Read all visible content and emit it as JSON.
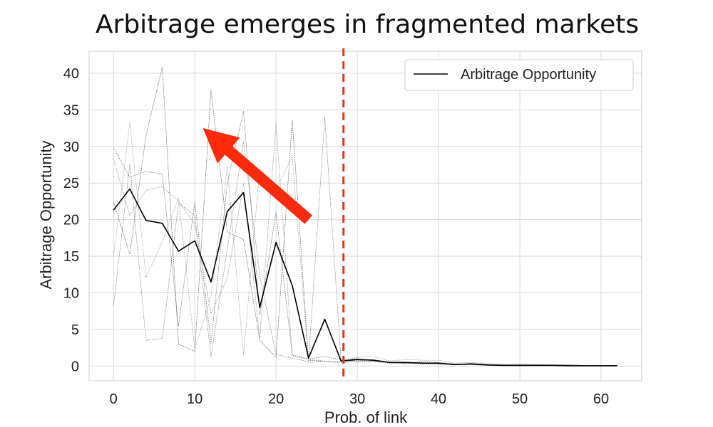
{
  "chart_data": {
    "type": "line",
    "title": "Arbitrage emerges in fragmented markets",
    "xlabel": "Prob. of link",
    "ylabel": "Arbitrage Opportunity",
    "xlim": [
      -3,
      65
    ],
    "ylim": [
      -2,
      43
    ],
    "xticks": [
      0,
      10,
      20,
      30,
      40,
      50,
      60
    ],
    "yticks": [
      0,
      5,
      10,
      15,
      20,
      25,
      30,
      35,
      40
    ],
    "grid": true,
    "legend_position": "top-right",
    "threshold_line": {
      "x": 28.3,
      "color": "#ee3311",
      "style": "dashed"
    },
    "annotation_arrow": {
      "from": [
        24,
        20
      ],
      "to": [
        11,
        32.5
      ],
      "color": "#ff2a0a"
    },
    "x": [
      0,
      2,
      4,
      6,
      8,
      10,
      12,
      14,
      16,
      18,
      20,
      22,
      24,
      26,
      28,
      30,
      32,
      34,
      36,
      38,
      40,
      42,
      44,
      46,
      48,
      50,
      52,
      54,
      56,
      58,
      60,
      62
    ],
    "series": [
      {
        "name": "Arbitrage Opportunity",
        "role": "mean",
        "color": "#000000",
        "values": [
          21.3,
          24.2,
          19.9,
          19.5,
          15.7,
          17.1,
          11.5,
          21.1,
          23.7,
          8.0,
          16.9,
          11.0,
          1.1,
          6.4,
          0.7,
          0.9,
          0.8,
          0.5,
          0.5,
          0.4,
          0.4,
          0.2,
          0.3,
          0.15,
          0.1,
          0.1,
          0.1,
          0.1,
          0.05,
          0.05,
          0.05,
          0.05
        ]
      },
      {
        "role": "run",
        "color": "#666666",
        "values": [
          29.8,
          25.8,
          26.6,
          26.2,
          5.5,
          22.4,
          3.1,
          25.0,
          34.8,
          7.0,
          21.0,
          1.5,
          1.0,
          1.3,
          0.9,
          1.0,
          0.7,
          0.5,
          0.4,
          0.6,
          0.5,
          0.3,
          0.3,
          0.3,
          0.2,
          0.2,
          0.2,
          0.15,
          0.15,
          0.1,
          0.1,
          0.1
        ]
      },
      {
        "role": "run",
        "color": "#555555",
        "values": [
          22.4,
          15.3,
          31.5,
          40.8,
          3.0,
          2.0,
          37.7,
          18.3,
          17.3,
          3.5,
          1.2,
          33.6,
          0.8,
          0.6,
          0.5,
          0.6,
          0.6,
          0.5,
          0.4,
          0.3,
          0.3,
          0.2,
          0.2,
          0.1,
          0.1,
          0.1,
          0.1,
          0.1,
          0.1,
          0.05,
          0.05,
          0.05
        ]
      },
      {
        "role": "run",
        "color": "#777777",
        "values": [
          8.2,
          27.5,
          3.5,
          3.8,
          22.3,
          20.6,
          1.3,
          16.0,
          30.7,
          12.3,
          1.6,
          1.1,
          0.6,
          34.0,
          0.8,
          0.7,
          0.9,
          0.5,
          0.5,
          0.4,
          0.3,
          0.2,
          0.4,
          0.2,
          0.1,
          0.1,
          0.1,
          0.1,
          0.1,
          0.05,
          0.05,
          0.05
        ]
      },
      {
        "role": "run",
        "color": "#888888",
        "values": [
          28.3,
          20.6,
          24.0,
          24.5,
          22.5,
          19.4,
          7.2,
          12.0,
          25.0,
          3.8,
          33.1,
          1.4,
          0.9,
          0.7,
          0.5,
          0.8,
          0.6,
          0.4,
          0.3,
          0.5,
          0.3,
          0.2,
          0.2,
          0.1,
          0.1,
          0.1,
          0.1,
          0.1,
          0.05,
          0.05,
          0.05,
          0.05
        ]
      },
      {
        "role": "run",
        "color": "#999999",
        "values": [
          15.0,
          33.2,
          12.1,
          17.0,
          23.0,
          2.3,
          9.5,
          27.2,
          1.5,
          27.0,
          24.2,
          28.6,
          0.5,
          0.6,
          0.6,
          1.2,
          1.3,
          0.7,
          0.9,
          0.8,
          0.8,
          0.4,
          0.5,
          0.3,
          0.2,
          0.3,
          0.2,
          0.2,
          0.2,
          0.1,
          0.1,
          0.1
        ]
      }
    ]
  }
}
